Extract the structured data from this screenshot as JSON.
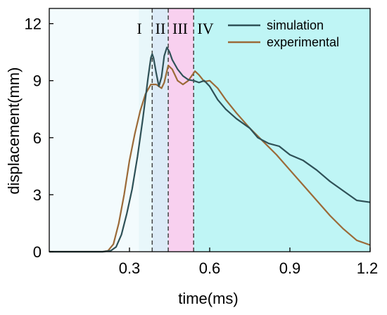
{
  "colors": {
    "simulation": "#2f5157",
    "experimental": "#9b6a38",
    "region_I": "#e8f7fa",
    "region_II": "#dcebf7",
    "region_III": "#f8d0ef",
    "region_IV": "#bff5f5",
    "left_bg": "#f3fbfd"
  },
  "chart_data": {
    "type": "line",
    "xlabel": "time(ms)",
    "ylabel": "displacement(mm)",
    "xlim": [
      0,
      1.2
    ],
    "ylim": [
      0,
      12.8
    ],
    "x_ticks": [
      {
        "value": 0.3,
        "label": "0.3"
      },
      {
        "value": 0.6,
        "label": "0.6"
      },
      {
        "value": 0.9,
        "label": "0.9"
      },
      {
        "value": 1.2,
        "label": "1.2"
      }
    ],
    "y_ticks": [
      {
        "value": 0,
        "label": "0"
      },
      {
        "value": 3,
        "label": "3"
      },
      {
        "value": 6,
        "label": "6"
      },
      {
        "value": 9,
        "label": "9"
      },
      {
        "value": 12,
        "label": "12"
      }
    ],
    "legend_position": "top-right",
    "regions": [
      {
        "label": "I",
        "x0": 0.335,
        "x1": 0.385
      },
      {
        "label": "II",
        "x0": 0.385,
        "x1": 0.445
      },
      {
        "label": "III",
        "x0": 0.445,
        "x1": 0.54
      },
      {
        "label": "IV",
        "x0": 0.54,
        "x1": 1.2
      }
    ],
    "dividers": [
      0.385,
      0.445,
      0.54
    ],
    "series": [
      {
        "name": "simulation",
        "points": [
          [
            0,
            0
          ],
          [
            0.2,
            0
          ],
          [
            0.23,
            0.05
          ],
          [
            0.25,
            0.25
          ],
          [
            0.27,
            0.9
          ],
          [
            0.29,
            2.0
          ],
          [
            0.31,
            3.3
          ],
          [
            0.33,
            5.0
          ],
          [
            0.35,
            7.0
          ],
          [
            0.37,
            9.2
          ],
          [
            0.38,
            10.2
          ],
          [
            0.385,
            10.4
          ],
          [
            0.39,
            10.2
          ],
          [
            0.4,
            9.4
          ],
          [
            0.41,
            8.7
          ],
          [
            0.42,
            9.2
          ],
          [
            0.43,
            10.3
          ],
          [
            0.44,
            10.75
          ],
          [
            0.45,
            10.5
          ],
          [
            0.46,
            10.1
          ],
          [
            0.48,
            9.6
          ],
          [
            0.5,
            9.25
          ],
          [
            0.52,
            9.05
          ],
          [
            0.54,
            9.0
          ],
          [
            0.56,
            8.9
          ],
          [
            0.58,
            9.0
          ],
          [
            0.6,
            8.7
          ],
          [
            0.63,
            8.0
          ],
          [
            0.66,
            7.5
          ],
          [
            0.7,
            7.0
          ],
          [
            0.75,
            6.5
          ],
          [
            0.78,
            6.0
          ],
          [
            0.82,
            5.7
          ],
          [
            0.86,
            5.55
          ],
          [
            0.9,
            5.1
          ],
          [
            0.95,
            4.8
          ],
          [
            1.0,
            4.3
          ],
          [
            1.05,
            3.7
          ],
          [
            1.1,
            3.2
          ],
          [
            1.15,
            2.7
          ],
          [
            1.2,
            2.6
          ]
        ]
      },
      {
        "name": "experimental",
        "points": [
          [
            0,
            0
          ],
          [
            0.2,
            0
          ],
          [
            0.22,
            0.05
          ],
          [
            0.24,
            0.4
          ],
          [
            0.26,
            1.5
          ],
          [
            0.28,
            3.0
          ],
          [
            0.3,
            4.8
          ],
          [
            0.32,
            6.2
          ],
          [
            0.34,
            7.4
          ],
          [
            0.36,
            8.3
          ],
          [
            0.38,
            8.8
          ],
          [
            0.4,
            8.8
          ],
          [
            0.42,
            8.6
          ],
          [
            0.43,
            8.9
          ],
          [
            0.445,
            9.8
          ],
          [
            0.46,
            9.6
          ],
          [
            0.48,
            9.0
          ],
          [
            0.5,
            8.8
          ],
          [
            0.52,
            9.0
          ],
          [
            0.545,
            9.5
          ],
          [
            0.56,
            9.3
          ],
          [
            0.58,
            8.95
          ],
          [
            0.6,
            9.0
          ],
          [
            0.63,
            8.6
          ],
          [
            0.66,
            8.0
          ],
          [
            0.7,
            7.3
          ],
          [
            0.75,
            6.5
          ],
          [
            0.8,
            5.8
          ],
          [
            0.85,
            5.1
          ],
          [
            0.9,
            4.3
          ],
          [
            0.95,
            3.5
          ],
          [
            1.0,
            2.7
          ],
          [
            1.05,
            1.9
          ],
          [
            1.1,
            1.2
          ],
          [
            1.15,
            0.6
          ],
          [
            1.2,
            0.35
          ]
        ]
      }
    ]
  }
}
